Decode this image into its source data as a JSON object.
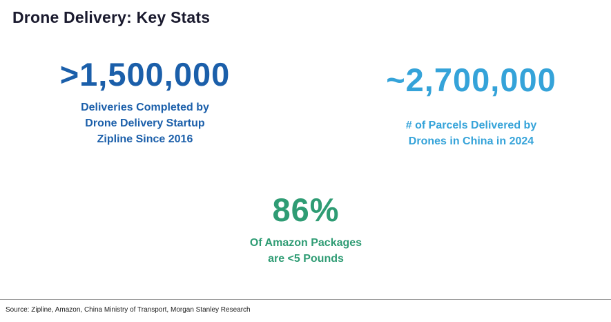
{
  "title": {
    "text": "Drone Delivery: Key Stats",
    "color": "#1a1a2e"
  },
  "stats": [
    {
      "id": "zipline",
      "value": ">1,500,000",
      "label_lines": [
        "Deliveries Completed by",
        "Drone Delivery Startup",
        "Zipline Since 2016"
      ],
      "color": "#1b5faa"
    },
    {
      "id": "china",
      "value": "~2,700,000",
      "label_lines": [
        "# of Parcels Delivered by",
        "Drones in China in 2024"
      ],
      "color": "#35a3d9"
    },
    {
      "id": "amazon",
      "value": "86%",
      "label_lines": [
        "Of Amazon Packages",
        "are <5 Pounds"
      ],
      "color": "#2f9c74"
    }
  ],
  "footer": {
    "source": "Source: Zipline, Amazon, China Ministry of Transport, Morgan Stanley Research",
    "divider_color": "#9b9b9b",
    "text_color": "#1c1c1c"
  }
}
